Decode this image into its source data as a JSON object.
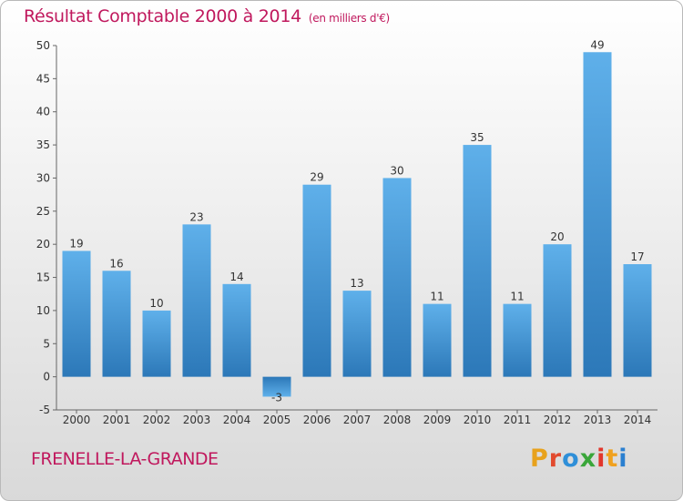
{
  "header": {
    "title": "Résultat Comptable 2000 à 2014",
    "subtitle": "(en milliers d'€)"
  },
  "footer": {
    "commune": "FRENELLE-LA-GRANDE",
    "logo_letters": [
      "P",
      "r",
      "o",
      "x",
      "i",
      "t",
      "i"
    ],
    "logo_colors": [
      "#e8a21c",
      "#e24a2e",
      "#2f8fd8",
      "#3aa63a",
      "#e2362c",
      "#f0a11f",
      "#2a7fd0"
    ]
  },
  "colors": {
    "bar_light": "#5fb0ea",
    "bar_dark": "#2c78b8",
    "title": "#c0185d"
  },
  "chart_data": {
    "type": "bar",
    "title": "Résultat Comptable 2000 à 2014",
    "categories": [
      "2000",
      "2001",
      "2002",
      "2003",
      "2004",
      "2005",
      "2006",
      "2007",
      "2008",
      "2009",
      "2010",
      "2011",
      "2012",
      "2013",
      "2014"
    ],
    "values": [
      19,
      16,
      10,
      23,
      14,
      -3,
      29,
      13,
      30,
      11,
      35,
      11,
      20,
      49,
      17
    ],
    "ylim": [
      -5,
      50
    ],
    "yticks": [
      -5,
      0,
      5,
      10,
      15,
      20,
      25,
      30,
      35,
      40,
      45,
      50
    ],
    "grid": false,
    "data_labels": true
  }
}
